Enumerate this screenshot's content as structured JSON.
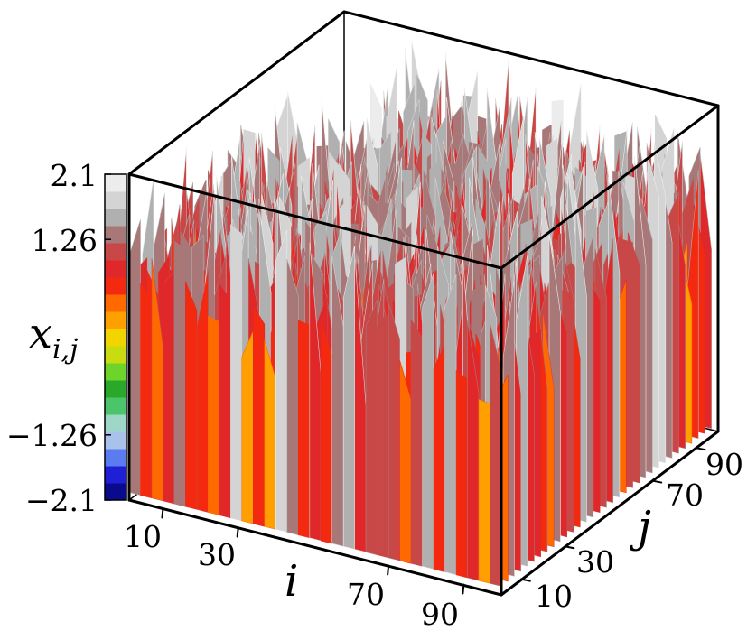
{
  "chart_data": {
    "type": "surface3d",
    "xlabel": "i",
    "ylabel": "j",
    "zlabel": "x_{i,j}",
    "x_ticks": [
      "10",
      "30",
      "70",
      "90"
    ],
    "y_ticks": [
      "10",
      "30",
      "70",
      "90"
    ],
    "x_range": [
      1,
      100
    ],
    "y_range": [
      1,
      100
    ],
    "zlim": [
      -2.1,
      2.1
    ],
    "colorbar": {
      "ticks": [
        "2.1",
        "1.26",
        "−1.26",
        "−2.1"
      ],
      "tick_values": [
        2.1,
        1.26,
        -1.26,
        -2.1
      ],
      "colors": [
        "#0a0a8c",
        "#1f1fd6",
        "#5a7cf0",
        "#a9c2ec",
        "#9ed6c8",
        "#4cc46a",
        "#2aa82a",
        "#6ed42a",
        "#c8dc10",
        "#f2d400",
        "#ffa000",
        "#ff6a00",
        "#f42a10",
        "#e0282a",
        "#c84848",
        "#a87878",
        "#b0b0b0",
        "#d4d4d4",
        "#ececec"
      ]
    },
    "description_values": {
      "high_level": 1.0,
      "low_level": -1.0
    }
  }
}
